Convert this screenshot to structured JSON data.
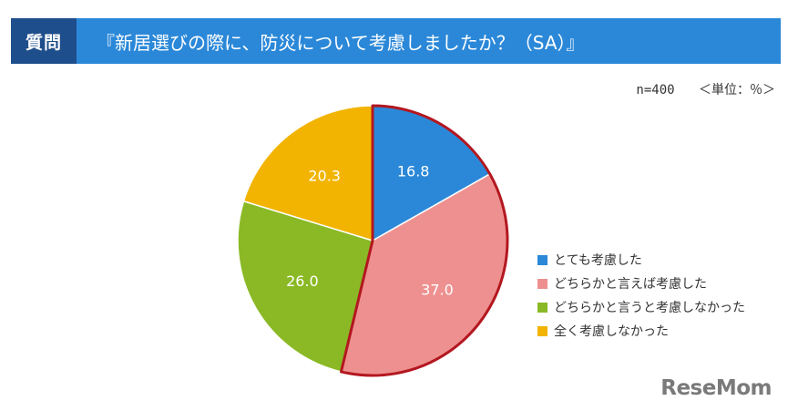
{
  "header": {
    "tag": "質問",
    "question": "『新居選びの際に、防災について考慮しましたか？（SA）』"
  },
  "meta": {
    "sample_size": "n=400",
    "unit": "＜単位：％＞"
  },
  "logo": "ReseMom",
  "colors": {
    "header_tag_bg": "#1f4e8c",
    "header_title_bg": "#2b88d8",
    "highlight_outline": "#b3171f"
  },
  "chart_data": {
    "type": "pie",
    "unit": "%",
    "start_angle_deg": 0,
    "direction": "clockwise",
    "highlighted": [
      "とても考慮した",
      "どちらかと言えば考慮した"
    ],
    "legend_position": "right",
    "slices": [
      {
        "label": "とても考慮した",
        "value": 16.8,
        "display": "16.8",
        "color": "#2b88d8"
      },
      {
        "label": "どちらかと言えば考慮した",
        "value": 37.0,
        "display": "37.0",
        "color": "#ee9090"
      },
      {
        "label": "どちらかと言うと考慮しなかった",
        "value": 26.0,
        "display": "26.0",
        "color": "#8ab925"
      },
      {
        "label": "全く考慮しなかった",
        "value": 20.3,
        "display": "20.3",
        "color": "#f2b400"
      }
    ]
  }
}
